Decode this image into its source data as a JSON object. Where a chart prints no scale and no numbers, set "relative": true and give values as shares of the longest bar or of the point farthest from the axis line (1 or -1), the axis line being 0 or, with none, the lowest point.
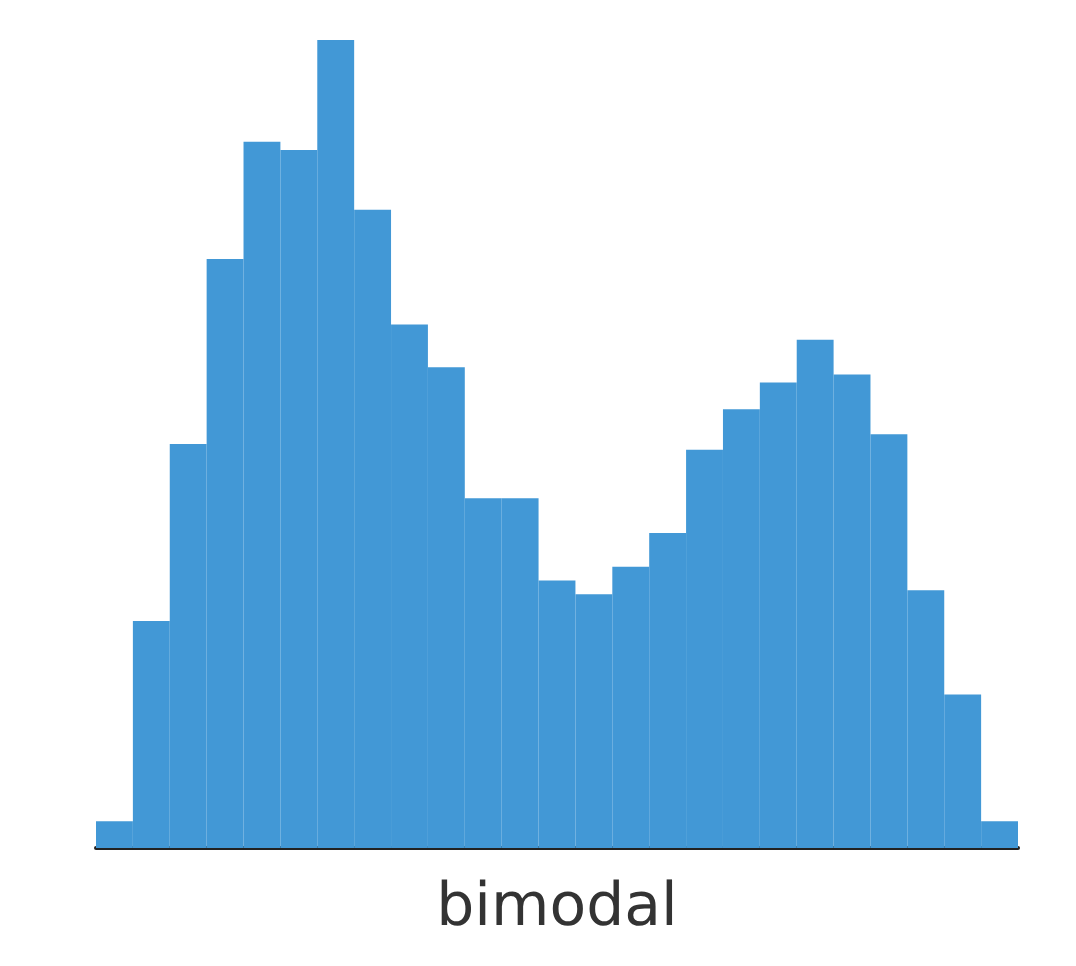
{
  "chart_data": {
    "type": "bar",
    "xlabel": "bimodal",
    "relative": true,
    "color": "#4298d6",
    "grid": false,
    "categories": [
      null,
      null,
      null,
      null,
      null,
      null,
      null,
      null,
      null,
      null,
      null,
      null,
      null,
      null,
      null,
      null,
      null,
      null,
      null,
      null,
      null,
      null,
      null,
      null,
      null
    ],
    "values": [
      0.033,
      0.281,
      0.5,
      0.729,
      0.874,
      0.864,
      1,
      0.79,
      0.648,
      0.595,
      0.433,
      0.433,
      0.331,
      0.314,
      0.348,
      0.39,
      0.493,
      0.543,
      0.576,
      0.629,
      0.586,
      0.512,
      0.319,
      0.19,
      0.033
    ]
  }
}
